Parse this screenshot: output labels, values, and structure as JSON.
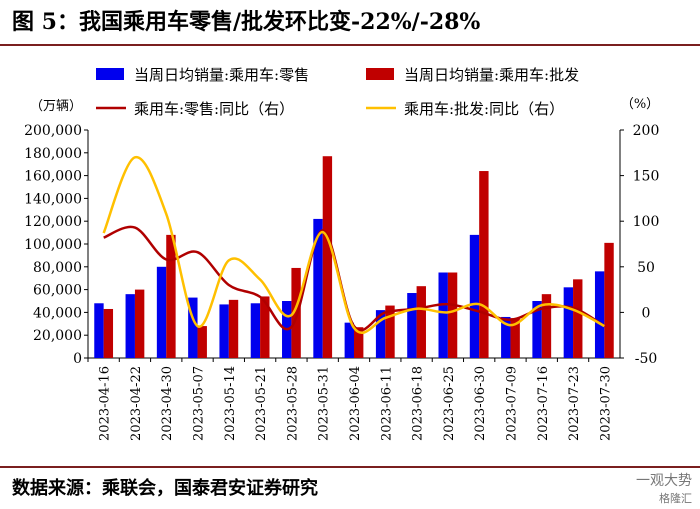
{
  "figure": {
    "title": "图 5：我国乘用车零售/批发环比变-22%/-28%",
    "source": "数据来源：乘联会，国泰君安证券研究",
    "watermark": "一观大势",
    "watermark_sub": "格隆汇"
  },
  "chart_data": {
    "type": "bar",
    "categories": [
      "2023-04-16",
      "2023-04-22",
      "2023-04-30",
      "2023-05-07",
      "2023-05-14",
      "2023-05-21",
      "2023-05-28",
      "2023-05-31",
      "2023-06-04",
      "2023-06-11",
      "2023-06-18",
      "2023-06-25",
      "2023-06-30",
      "2023-07-09",
      "2023-07-16",
      "2023-07-23",
      "2023-07-30"
    ],
    "y_left": {
      "unit_label": "（万辆）",
      "lim": [
        0,
        200000
      ],
      "ticks": [
        "0",
        "20,000",
        "40,000",
        "60,000",
        "80,000",
        "100,000",
        "120,000",
        "140,000",
        "160,000",
        "180,000",
        "200,000"
      ]
    },
    "y_right": {
      "unit_label": "（%）",
      "lim": [
        -50,
        200
      ],
      "ticks": [
        "-50",
        "0",
        "50",
        "100",
        "150",
        "200"
      ]
    },
    "series": [
      {
        "name": "当周日均销量:乘用车:零售",
        "type": "bar",
        "axis": "left",
        "color": "#0000ee",
        "values": [
          48000,
          56000,
          80000,
          53000,
          47000,
          48000,
          50000,
          122000,
          31000,
          42000,
          57000,
          75000,
          108000,
          36000,
          50000,
          62000,
          76000
        ]
      },
      {
        "name": "当周日均销量:乘用车:批发",
        "type": "bar",
        "axis": "left",
        "color": "#c00000",
        "values": [
          43000,
          60000,
          108000,
          28000,
          51000,
          54000,
          79000,
          177000,
          27000,
          46000,
          63000,
          75000,
          164000,
          35000,
          56000,
          69000,
          101000
        ]
      },
      {
        "name": "乘用车:零售:同比（右）",
        "type": "line",
        "axis": "right",
        "color": "#b00000",
        "values": [
          82,
          93,
          58,
          66,
          30,
          17,
          -16,
          90,
          -15,
          0,
          4,
          9,
          1,
          -8,
          4,
          5,
          -15
        ]
      },
      {
        "name": "乘用车:批发:同比（右）",
        "type": "line",
        "axis": "right",
        "color": "#ffc000",
        "values": [
          87,
          170,
          108,
          -15,
          57,
          36,
          -3,
          88,
          -17,
          -6,
          4,
          0,
          9,
          -14,
          8,
          3,
          -15
        ]
      }
    ]
  }
}
